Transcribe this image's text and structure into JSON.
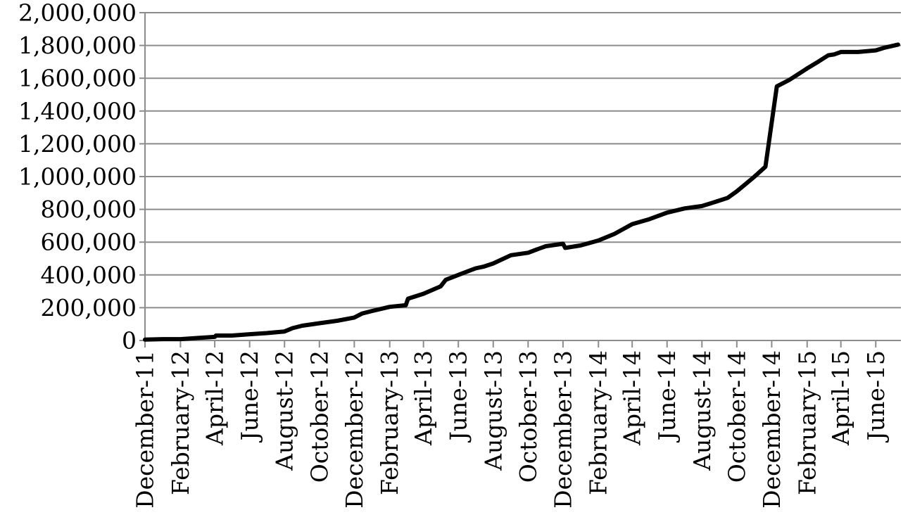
{
  "chart_data": {
    "type": "line",
    "title": "",
    "xlabel": "",
    "ylabel": "",
    "ylim": [
      0,
      2000000
    ],
    "grid": "horizontal",
    "legend": "none",
    "y_ticks": [
      {
        "value": 0,
        "label": "0"
      },
      {
        "value": 200000,
        "label": "200,000"
      },
      {
        "value": 400000,
        "label": "400,000"
      },
      {
        "value": 600000,
        "label": "600,000"
      },
      {
        "value": 800000,
        "label": "800,000"
      },
      {
        "value": 1000000,
        "label": "1,000,000"
      },
      {
        "value": 1200000,
        "label": "1,200,000"
      },
      {
        "value": 1400000,
        "label": "1,400,000"
      },
      {
        "value": 1600000,
        "label": "1,600,000"
      },
      {
        "value": 1800000,
        "label": "1,800,000"
      },
      {
        "value": 2000000,
        "label": "2,000,000"
      }
    ],
    "x_range": [
      "2011-12-01",
      "2015-07-15"
    ],
    "x_ticks": [
      {
        "date": "2011-12-01",
        "label": "December-11"
      },
      {
        "date": "2012-02-01",
        "label": "February-12"
      },
      {
        "date": "2012-04-01",
        "label": "April-12"
      },
      {
        "date": "2012-06-01",
        "label": "June-12"
      },
      {
        "date": "2012-08-01",
        "label": "August-12"
      },
      {
        "date": "2012-10-01",
        "label": "October-12"
      },
      {
        "date": "2012-12-01",
        "label": "December-12"
      },
      {
        "date": "2013-02-01",
        "label": "February-13"
      },
      {
        "date": "2013-04-01",
        "label": "April-13"
      },
      {
        "date": "2013-06-01",
        "label": "June-13"
      },
      {
        "date": "2013-08-01",
        "label": "August-13"
      },
      {
        "date": "2013-10-01",
        "label": "October-13"
      },
      {
        "date": "2013-12-01",
        "label": "December-13"
      },
      {
        "date": "2014-02-01",
        "label": "February-14"
      },
      {
        "date": "2014-04-01",
        "label": "April-14"
      },
      {
        "date": "2014-06-01",
        "label": "June-14"
      },
      {
        "date": "2014-08-01",
        "label": "August-14"
      },
      {
        "date": "2014-10-01",
        "label": "October-14"
      },
      {
        "date": "2014-12-01",
        "label": "December-14"
      },
      {
        "date": "2015-02-01",
        "label": "February-15"
      },
      {
        "date": "2015-04-01",
        "label": "April-15"
      },
      {
        "date": "2015-06-01",
        "label": "June-15"
      }
    ],
    "series": [
      {
        "color": "#000000",
        "points": [
          [
            "2011-12-01",
            5000
          ],
          [
            "2012-01-01",
            8000
          ],
          [
            "2012-02-01",
            8000
          ],
          [
            "2012-03-01",
            15000
          ],
          [
            "2012-04-01",
            22000
          ],
          [
            "2012-04-03",
            30000
          ],
          [
            "2012-05-01",
            30000
          ],
          [
            "2012-06-01",
            38000
          ],
          [
            "2012-07-01",
            45000
          ],
          [
            "2012-08-01",
            55000
          ],
          [
            "2012-08-15",
            75000
          ],
          [
            "2012-09-01",
            90000
          ],
          [
            "2012-10-01",
            105000
          ],
          [
            "2012-11-01",
            120000
          ],
          [
            "2012-12-01",
            140000
          ],
          [
            "2012-12-15",
            165000
          ],
          [
            "2013-01-01",
            180000
          ],
          [
            "2013-02-01",
            205000
          ],
          [
            "2013-03-01",
            215000
          ],
          [
            "2013-03-05",
            255000
          ],
          [
            "2013-04-01",
            285000
          ],
          [
            "2013-05-01",
            330000
          ],
          [
            "2013-05-10",
            370000
          ],
          [
            "2013-06-01",
            400000
          ],
          [
            "2013-07-01",
            440000
          ],
          [
            "2013-07-15",
            450000
          ],
          [
            "2013-08-01",
            470000
          ],
          [
            "2013-09-01",
            520000
          ],
          [
            "2013-10-01",
            535000
          ],
          [
            "2013-10-20",
            560000
          ],
          [
            "2013-11-01",
            575000
          ],
          [
            "2013-12-01",
            590000
          ],
          [
            "2013-12-05",
            565000
          ],
          [
            "2014-01-01",
            580000
          ],
          [
            "2014-02-01",
            610000
          ],
          [
            "2014-03-01",
            650000
          ],
          [
            "2014-04-01",
            710000
          ],
          [
            "2014-05-01",
            740000
          ],
          [
            "2014-06-01",
            780000
          ],
          [
            "2014-07-01",
            805000
          ],
          [
            "2014-08-01",
            820000
          ],
          [
            "2014-08-15",
            835000
          ],
          [
            "2014-09-15",
            870000
          ],
          [
            "2014-10-01",
            910000
          ],
          [
            "2014-10-15",
            950000
          ],
          [
            "2014-11-01",
            1000000
          ],
          [
            "2014-11-20",
            1060000
          ],
          [
            "2014-12-10",
            1550000
          ],
          [
            "2015-01-01",
            1590000
          ],
          [
            "2015-02-01",
            1660000
          ],
          [
            "2015-02-20",
            1700000
          ],
          [
            "2015-03-10",
            1740000
          ],
          [
            "2015-03-20",
            1745000
          ],
          [
            "2015-04-01",
            1760000
          ],
          [
            "2015-05-01",
            1760000
          ],
          [
            "2015-06-01",
            1770000
          ],
          [
            "2015-06-15",
            1785000
          ],
          [
            "2015-07-10",
            1805000
          ]
        ]
      }
    ]
  }
}
